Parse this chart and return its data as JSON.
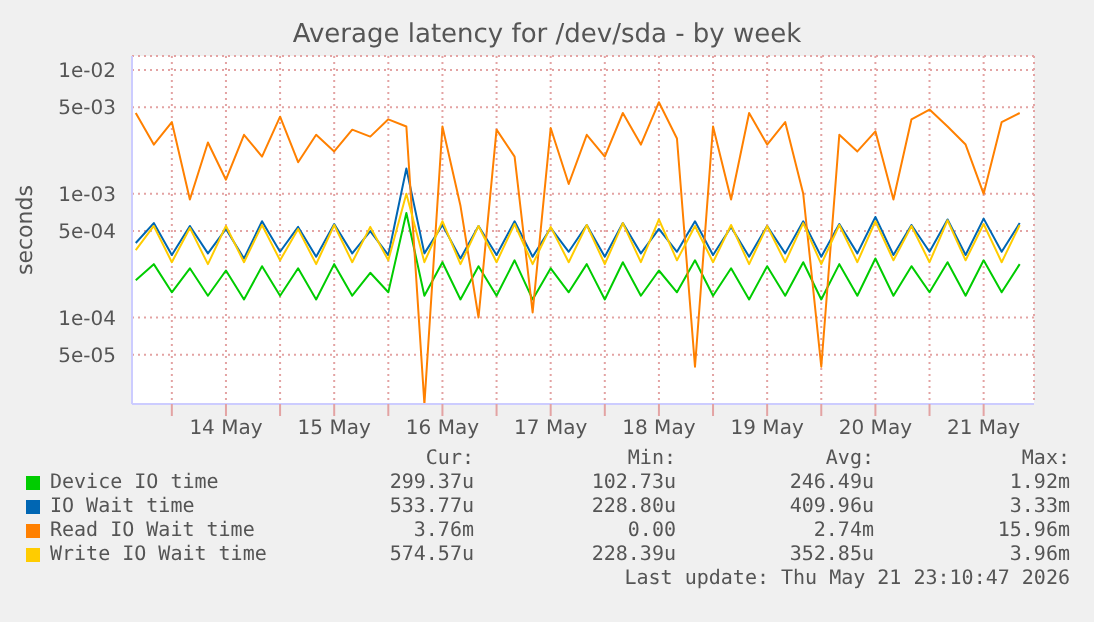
{
  "chart_data": {
    "type": "line",
    "title": "Average latency for /dev/sda - by week",
    "ylabel": "seconds",
    "log": "y",
    "grid": true,
    "legend": "bottom",
    "marker": "none",
    "line_style": "solid",
    "ylim": [
      2e-05,
      0.013
    ],
    "yticks": [
      {
        "value": 5e-05,
        "label": "5e-05"
      },
      {
        "value": 0.0001,
        "label": "1e-04"
      },
      {
        "value": 0.0005,
        "label": "5e-04"
      },
      {
        "value": 0.001,
        "label": "1e-03"
      },
      {
        "value": 0.005,
        "label": "5e-03"
      },
      {
        "value": 0.01,
        "label": "1e-02"
      }
    ],
    "xlim": [
      "2026-05-13T15:10",
      "2026-05-21T23:10"
    ],
    "xticks": [
      {
        "value": "2026-05-14T00:00",
        "label": null
      },
      {
        "value": "2026-05-15T00:00",
        "label": null
      },
      {
        "value": "2026-05-16T00:00",
        "label": null
      },
      {
        "value": "2026-05-17T00:00",
        "label": null
      },
      {
        "value": "2026-05-18T00:00",
        "label": null
      },
      {
        "value": "2026-05-19T00:00",
        "label": null
      },
      {
        "value": "2026-05-20T00:00",
        "label": null
      },
      {
        "value": "2026-05-21T00:00",
        "label": null
      },
      {
        "value": "2026-05-14T12:00",
        "label": "14 May"
      },
      {
        "value": "2026-05-15T12:00",
        "label": "15 May"
      },
      {
        "value": "2026-05-16T12:00",
        "label": "16 May"
      },
      {
        "value": "2026-05-17T12:00",
        "label": "17 May"
      },
      {
        "value": "2026-05-18T12:00",
        "label": "18 May"
      },
      {
        "value": "2026-05-19T12:00",
        "label": "19 May"
      },
      {
        "value": "2026-05-20T12:00",
        "label": "20 May"
      },
      {
        "value": "2026-05-21T12:00",
        "label": "21 May"
      }
    ],
    "x": [
      "2026-05-13T16:00",
      "2026-05-13T20:00",
      "2026-05-14T00:00",
      "2026-05-14T04:00",
      "2026-05-14T08:00",
      "2026-05-14T12:00",
      "2026-05-14T16:00",
      "2026-05-14T20:00",
      "2026-05-15T00:00",
      "2026-05-15T04:00",
      "2026-05-15T08:00",
      "2026-05-15T12:00",
      "2026-05-15T16:00",
      "2026-05-15T20:00",
      "2026-05-16T00:00",
      "2026-05-16T04:00",
      "2026-05-16T08:00",
      "2026-05-16T12:00",
      "2026-05-16T16:00",
      "2026-05-16T20:00",
      "2026-05-17T00:00",
      "2026-05-17T04:00",
      "2026-05-17T08:00",
      "2026-05-17T12:00",
      "2026-05-17T16:00",
      "2026-05-17T20:00",
      "2026-05-18T00:00",
      "2026-05-18T04:00",
      "2026-05-18T08:00",
      "2026-05-18T12:00",
      "2026-05-18T16:00",
      "2026-05-18T20:00",
      "2026-05-19T00:00",
      "2026-05-19T04:00",
      "2026-05-19T08:00",
      "2026-05-19T12:00",
      "2026-05-19T16:00",
      "2026-05-19T20:00",
      "2026-05-20T00:00",
      "2026-05-20T04:00",
      "2026-05-20T08:00",
      "2026-05-20T12:00",
      "2026-05-20T16:00",
      "2026-05-20T20:00",
      "2026-05-21T00:00",
      "2026-05-21T04:00",
      "2026-05-21T08:00",
      "2026-05-21T12:00",
      "2026-05-21T16:00",
      "2026-05-21T20:00"
    ],
    "series": [
      {
        "name": "Device IO time",
        "color": "#00cc00",
        "values": [
          0.0002,
          0.00027,
          0.00016,
          0.00025,
          0.00015,
          0.00024,
          0.00014,
          0.00026,
          0.00015,
          0.00025,
          0.00014,
          0.00027,
          0.00015,
          0.00023,
          0.00016,
          0.0007,
          0.00015,
          0.00028,
          0.00014,
          0.00026,
          0.00015,
          0.00029,
          0.00014,
          0.00025,
          0.00016,
          0.00027,
          0.00014,
          0.00028,
          0.00015,
          0.00024,
          0.00016,
          0.00029,
          0.00015,
          0.00025,
          0.00014,
          0.00026,
          0.00015,
          0.00028,
          0.00014,
          0.00027,
          0.00015,
          0.0003,
          0.00015,
          0.00026,
          0.00016,
          0.00028,
          0.00015,
          0.00029,
          0.00016,
          0.00027
        ]
      },
      {
        "name": "IO Wait time",
        "color": "#0066b3",
        "values": [
          0.0004,
          0.00058,
          0.00032,
          0.00055,
          0.00033,
          0.00052,
          0.0003,
          0.0006,
          0.00034,
          0.00054,
          0.00031,
          0.00057,
          0.00033,
          0.0005,
          0.00032,
          0.0016,
          0.00033,
          0.00056,
          0.0003,
          0.00055,
          0.00032,
          0.0006,
          0.00031,
          0.00053,
          0.00034,
          0.00056,
          0.00031,
          0.00058,
          0.00033,
          0.00052,
          0.00034,
          0.0006,
          0.00032,
          0.00054,
          0.00031,
          0.00055,
          0.00033,
          0.0006,
          0.00031,
          0.00057,
          0.00033,
          0.00065,
          0.00032,
          0.00056,
          0.00034,
          0.00062,
          0.00032,
          0.00063,
          0.00034,
          0.00058
        ]
      },
      {
        "name": "Read IO Wait time",
        "color": "#ff8000",
        "values": [
          0.0045,
          0.0025,
          0.0038,
          0.0009,
          0.0026,
          0.0013,
          0.003,
          0.002,
          0.0042,
          0.0018,
          0.003,
          0.0022,
          0.0033,
          0.0029,
          0.004,
          0.0035,
          2e-05,
          0.0035,
          0.0008,
          0.0001,
          0.0033,
          0.002,
          0.00011,
          0.0034,
          0.0012,
          0.003,
          0.002,
          0.0045,
          0.0025,
          0.0055,
          0.0028,
          4e-05,
          0.0035,
          0.0009,
          0.0045,
          0.0025,
          0.0038,
          0.001,
          4e-05,
          0.003,
          0.0022,
          0.0032,
          0.0009,
          0.004,
          0.0048,
          0.0035,
          0.0025,
          0.001,
          0.0038,
          0.0045
        ]
      },
      {
        "name": "Write IO Wait time",
        "color": "#ffcc00",
        "values": [
          0.00035,
          0.00055,
          0.00028,
          0.00053,
          0.00027,
          0.00055,
          0.00028,
          0.00056,
          0.00029,
          0.00052,
          0.00027,
          0.00056,
          0.00028,
          0.00054,
          0.00029,
          0.001,
          0.00028,
          0.0006,
          0.00027,
          0.00055,
          0.00028,
          0.00057,
          0.00027,
          0.00054,
          0.00028,
          0.00056,
          0.00027,
          0.00058,
          0.00028,
          0.00062,
          0.00029,
          0.00055,
          0.00028,
          0.00056,
          0.00027,
          0.00055,
          0.00028,
          0.00058,
          0.00027,
          0.00056,
          0.00028,
          0.0006,
          0.00029,
          0.00055,
          0.00028,
          0.00061,
          0.00029,
          0.00057,
          0.00028,
          0.00056
        ]
      }
    ],
    "annotations": [
      "Cur:",
      "Min:",
      "Avg:",
      "Max:",
      "299.37u",
      "102.73u",
      "246.49u",
      "1.92m",
      "533.77u",
      "228.80u",
      "409.96u",
      "3.33m",
      "3.76m",
      "0.00",
      "2.74m",
      "15.96m",
      "574.57u",
      "228.39u",
      "352.85u",
      "3.96m",
      "Last update: Thu May 21 23:10:47 2026"
    ]
  }
}
